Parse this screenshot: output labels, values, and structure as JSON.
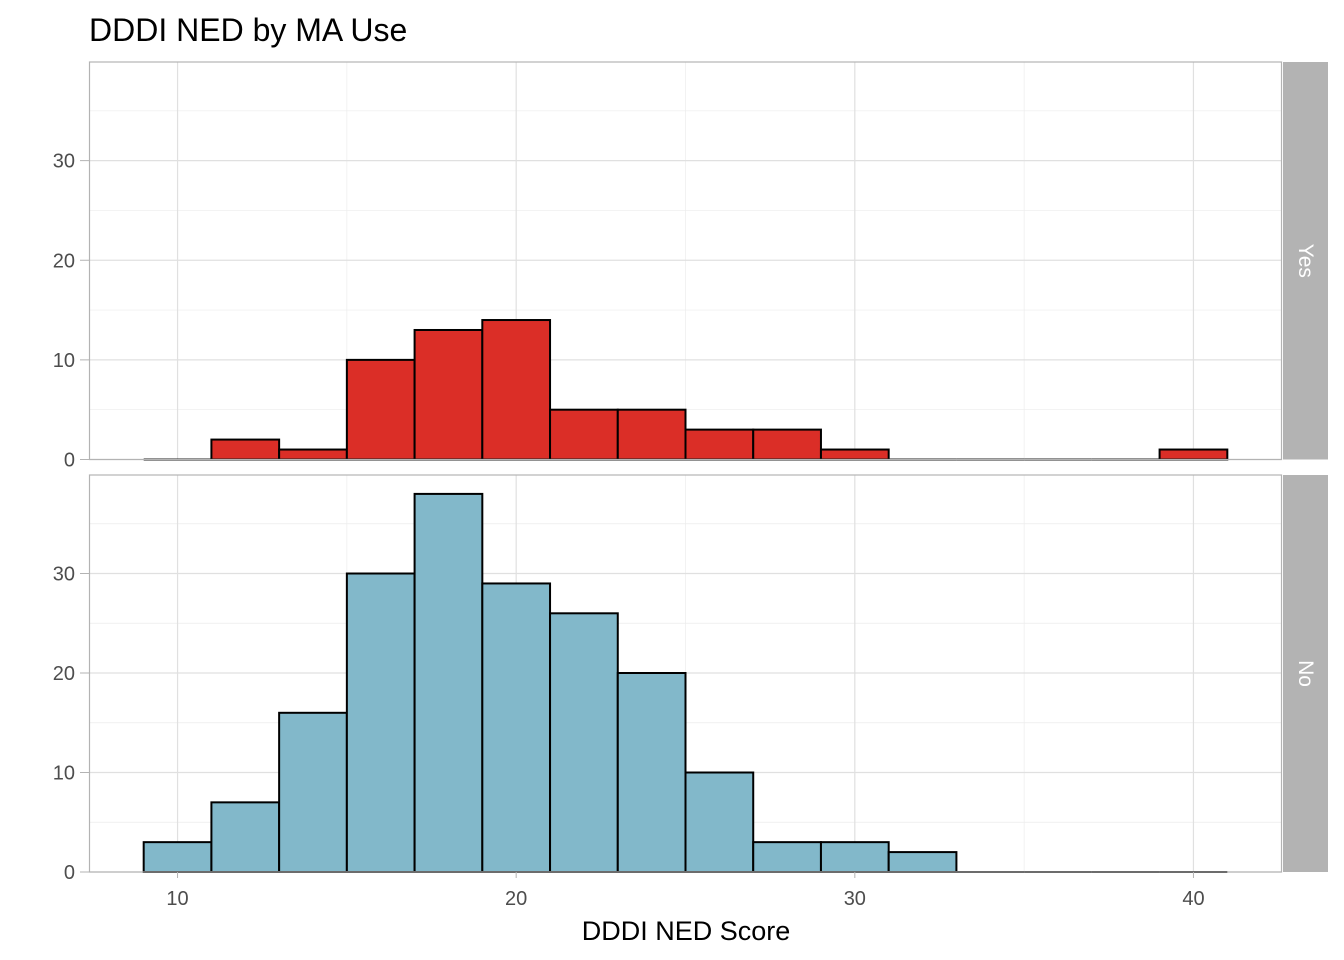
{
  "chart_data": {
    "type": "bar",
    "subtype": "faceted-histogram",
    "title": "DDDI NED by MA Use",
    "xlabel": "DDDI NED Score",
    "ylabel": "",
    "xlim": [
      7.4,
      42.6
    ],
    "ylim": [
      0,
      39.9
    ],
    "x_ticks": [
      10,
      20,
      30,
      40
    ],
    "y_ticks": [
      0,
      10,
      20,
      30
    ],
    "bin_width": 2,
    "bin_edges": [
      9,
      11,
      13,
      15,
      17,
      19,
      21,
      23,
      25,
      27,
      29,
      31,
      33,
      35,
      37,
      39,
      41
    ],
    "grid": true,
    "bar_outline": "#000000",
    "facets": [
      {
        "label": "Yes",
        "fill": "#db2e27",
        "values": [
          0,
          2,
          1,
          10,
          13,
          14,
          5,
          5,
          3,
          3,
          1,
          0,
          0,
          0,
          0,
          1
        ]
      },
      {
        "label": "No",
        "fill": "#82b8ca",
        "values": [
          3,
          7,
          16,
          30,
          38,
          29,
          26,
          20,
          10,
          3,
          3,
          2,
          0,
          0,
          0,
          0
        ]
      }
    ],
    "strip_color": "#b3b3b3"
  }
}
